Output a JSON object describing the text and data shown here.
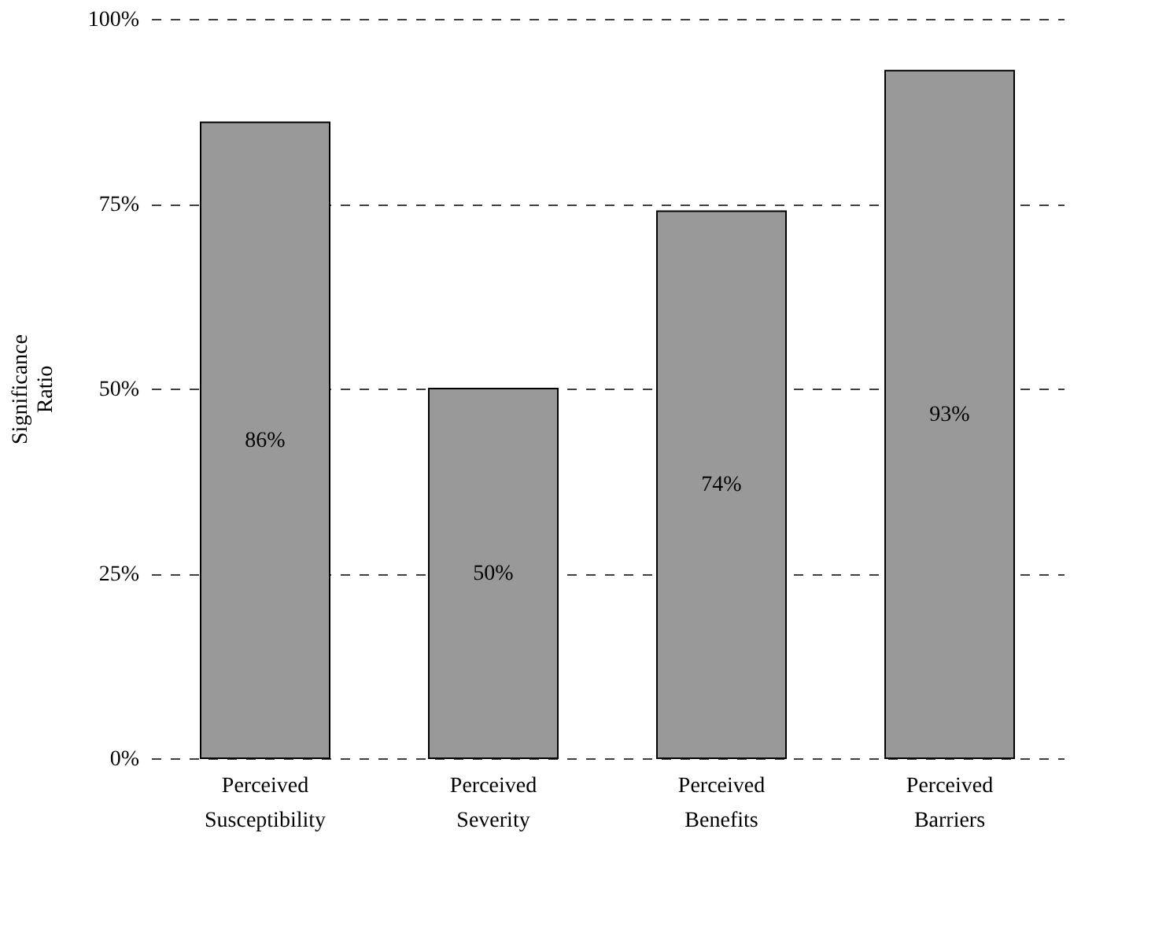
{
  "chart_data": {
    "type": "bar",
    "ylabel": "Significance Ratio",
    "categories": [
      "Perceived Susceptibility",
      "Perceived Severity",
      "Perceived Benefits",
      "Perceived Barriers"
    ],
    "values": [
      86,
      50,
      74,
      93
    ],
    "value_labels": [
      "86%",
      "50%",
      "74%",
      "93%"
    ],
    "color": "#999999",
    "ylim": [
      0,
      100
    ],
    "yticks": [
      {
        "value": 0,
        "label": "0%"
      },
      {
        "value": 25,
        "label": "25%"
      },
      {
        "value": 50,
        "label": "50%"
      },
      {
        "value": 75,
        "label": "75%"
      },
      {
        "value": 100,
        "label": "100%"
      }
    ],
    "grid": "y"
  }
}
